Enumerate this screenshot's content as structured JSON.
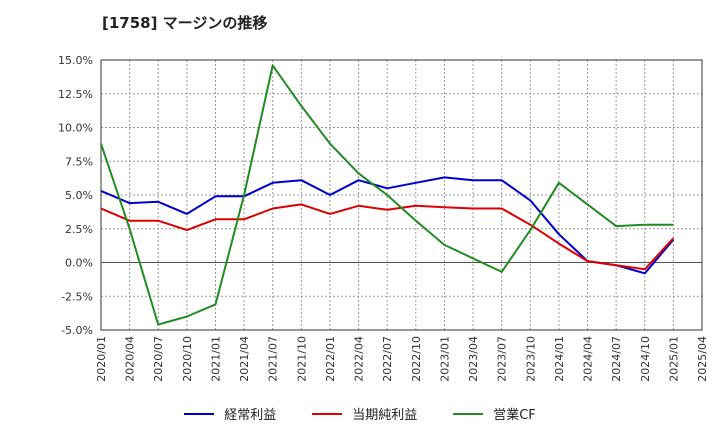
{
  "chart_data": {
    "type": "line",
    "title": "[1758]  マージンの推移",
    "x": [
      "2020/01",
      "2020/04",
      "2020/07",
      "2020/10",
      "2021/01",
      "2021/04",
      "2021/07",
      "2021/10",
      "2022/01",
      "2022/04",
      "2022/07",
      "2022/10",
      "2023/01",
      "2023/04",
      "2023/07",
      "2023/10",
      "2024/01",
      "2024/04",
      "2024/07",
      "2024/10",
      "2025/01",
      "2025/04"
    ],
    "ylim": [
      -5.0,
      15.0
    ],
    "yticks": [
      -5.0,
      -2.5,
      0.0,
      2.5,
      5.0,
      7.5,
      10.0,
      12.5,
      15.0
    ],
    "ytick_labels": [
      "-5.0%",
      "-2.5%",
      "0.0%",
      "2.5%",
      "5.0%",
      "7.5%",
      "10.0%",
      "12.5%",
      "15.0%"
    ],
    "grid": true,
    "legend_position": "bottom",
    "series": [
      {
        "name": "経常利益",
        "color": "#0000cc",
        "values": [
          5.3,
          4.4,
          4.5,
          3.6,
          4.9,
          4.9,
          5.9,
          6.1,
          5.0,
          6.1,
          5.5,
          5.9,
          6.3,
          6.1,
          6.1,
          4.6,
          2.1,
          0.1,
          -0.2,
          -0.8,
          1.7,
          null
        ]
      },
      {
        "name": "当期純利益",
        "color": "#dd0000",
        "values": [
          4.0,
          3.1,
          3.1,
          2.4,
          3.2,
          3.2,
          4.0,
          4.3,
          3.6,
          4.2,
          3.9,
          4.2,
          4.1,
          4.0,
          4.0,
          2.8,
          1.4,
          0.1,
          -0.2,
          -0.5,
          1.8,
          null
        ]
      },
      {
        "name": "営業CF",
        "color": "#228b22",
        "values": [
          8.8,
          2.5,
          -4.6,
          -4.0,
          -3.1,
          5.0,
          14.6,
          11.6,
          8.8,
          6.6,
          5.0,
          3.1,
          1.3,
          0.3,
          -0.7,
          2.4,
          5.9,
          4.3,
          2.7,
          2.8,
          2.8,
          null
        ]
      }
    ]
  }
}
